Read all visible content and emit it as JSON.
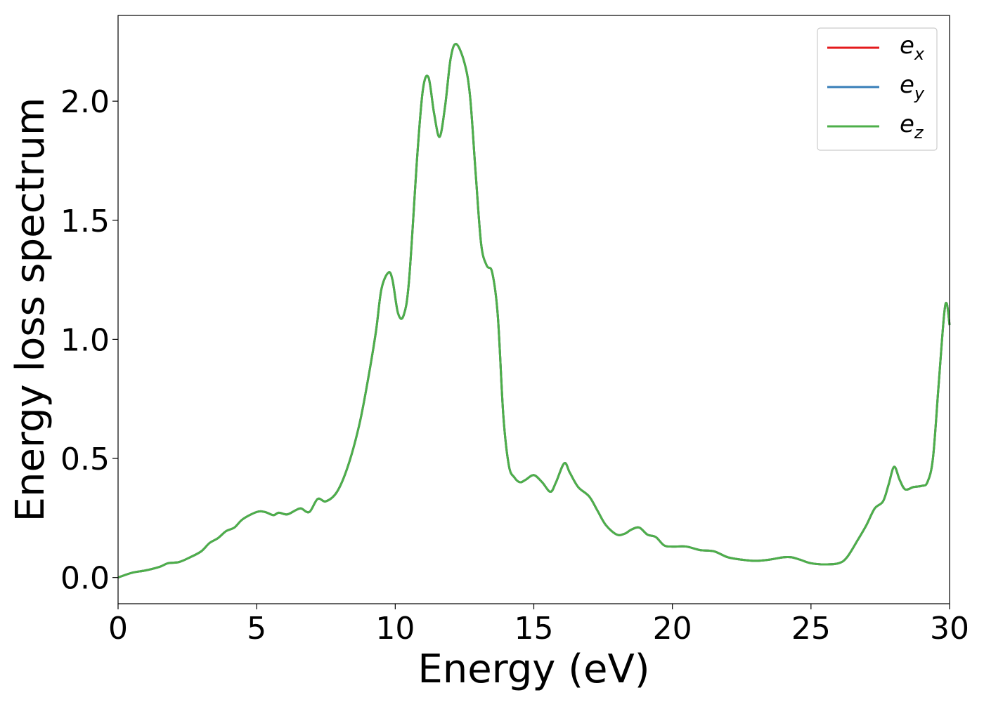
{
  "chart_data": {
    "type": "line",
    "xlabel": "Energy (eV)",
    "ylabel": "Energy loss spectrum",
    "xlim": [
      0,
      30
    ],
    "ylim": [
      -0.11,
      2.36
    ],
    "xticks": [
      0,
      5,
      10,
      15,
      20,
      25,
      30
    ],
    "xtick_labels": [
      "0",
      "5",
      "10",
      "15",
      "20",
      "25",
      "30"
    ],
    "yticks": [
      0.0,
      0.5,
      1.0,
      1.5,
      2.0
    ],
    "ytick_labels": [
      "0.0",
      "0.5",
      "1.0",
      "1.5",
      "2.0"
    ],
    "grid": false,
    "legend": {
      "position": "top-right"
    },
    "x": [
      0,
      0.5,
      1.0,
      1.5,
      1.8,
      2.2,
      2.6,
      3.0,
      3.3,
      3.6,
      3.9,
      4.2,
      4.5,
      5.0,
      5.3,
      5.6,
      5.8,
      6.1,
      6.4,
      6.6,
      6.9,
      7.2,
      7.5,
      7.9,
      8.3,
      8.7,
      9.0,
      9.3,
      9.5,
      9.75,
      9.9,
      10.1,
      10.3,
      10.5,
      10.8,
      11.0,
      11.2,
      11.4,
      11.6,
      11.8,
      12.0,
      12.2,
      12.5,
      12.7,
      12.9,
      13.1,
      13.3,
      13.5,
      13.7,
      13.9,
      14.1,
      14.3,
      14.5,
      14.7,
      15.0,
      15.3,
      15.6,
      15.8,
      16.1,
      16.3,
      16.6,
      17.0,
      17.3,
      17.6,
      18.0,
      18.3,
      18.5,
      18.8,
      19.1,
      19.4,
      19.7,
      20.0,
      20.5,
      21.0,
      21.5,
      22.0,
      22.5,
      23.0,
      23.5,
      24.0,
      24.3,
      24.6,
      25.0,
      25.5,
      26.0,
      26.3,
      26.7,
      27.0,
      27.3,
      27.6,
      27.8,
      28.0,
      28.2,
      28.4,
      28.7,
      29.0,
      29.2,
      29.4,
      29.6,
      29.8,
      29.9,
      30.0
    ],
    "series": [
      {
        "name": "e_x",
        "label_main": "e",
        "label_sub": "x",
        "color": "#e41a1c",
        "values": [
          0.0,
          0.02,
          0.03,
          0.045,
          0.06,
          0.065,
          0.085,
          0.11,
          0.145,
          0.165,
          0.195,
          0.21,
          0.245,
          0.275,
          0.275,
          0.262,
          0.272,
          0.265,
          0.282,
          0.29,
          0.275,
          0.33,
          0.32,
          0.36,
          0.47,
          0.64,
          0.82,
          1.03,
          1.21,
          1.28,
          1.25,
          1.11,
          1.1,
          1.25,
          1.78,
          2.05,
          2.1,
          1.95,
          1.85,
          1.98,
          2.18,
          2.24,
          2.16,
          2.02,
          1.7,
          1.4,
          1.31,
          1.28,
          1.1,
          0.68,
          0.47,
          0.42,
          0.4,
          0.41,
          0.43,
          0.4,
          0.36,
          0.4,
          0.48,
          0.44,
          0.38,
          0.34,
          0.28,
          0.22,
          0.18,
          0.185,
          0.2,
          0.21,
          0.18,
          0.17,
          0.135,
          0.13,
          0.13,
          0.115,
          0.11,
          0.085,
          0.075,
          0.07,
          0.075,
          0.085,
          0.085,
          0.075,
          0.06,
          0.055,
          0.06,
          0.085,
          0.16,
          0.22,
          0.29,
          0.32,
          0.39,
          0.465,
          0.41,
          0.37,
          0.38,
          0.385,
          0.4,
          0.5,
          0.8,
          1.1,
          1.15,
          1.06
        ]
      },
      {
        "name": "e_y",
        "label_main": "e",
        "label_sub": "y",
        "color": "#377eb8",
        "values": [
          0.0,
          0.02,
          0.03,
          0.045,
          0.06,
          0.065,
          0.085,
          0.11,
          0.145,
          0.165,
          0.195,
          0.21,
          0.245,
          0.275,
          0.275,
          0.262,
          0.272,
          0.265,
          0.282,
          0.29,
          0.275,
          0.33,
          0.32,
          0.36,
          0.47,
          0.64,
          0.82,
          1.03,
          1.21,
          1.28,
          1.25,
          1.11,
          1.1,
          1.25,
          1.78,
          2.05,
          2.1,
          1.95,
          1.85,
          1.98,
          2.18,
          2.24,
          2.16,
          2.02,
          1.7,
          1.4,
          1.31,
          1.28,
          1.1,
          0.68,
          0.47,
          0.42,
          0.4,
          0.41,
          0.43,
          0.4,
          0.36,
          0.4,
          0.48,
          0.44,
          0.38,
          0.34,
          0.28,
          0.22,
          0.18,
          0.185,
          0.2,
          0.21,
          0.18,
          0.17,
          0.135,
          0.13,
          0.13,
          0.115,
          0.11,
          0.085,
          0.075,
          0.07,
          0.075,
          0.085,
          0.085,
          0.075,
          0.06,
          0.055,
          0.06,
          0.085,
          0.16,
          0.22,
          0.29,
          0.32,
          0.39,
          0.465,
          0.41,
          0.37,
          0.38,
          0.385,
          0.4,
          0.5,
          0.8,
          1.1,
          1.15,
          1.06
        ]
      },
      {
        "name": "e_z",
        "label_main": "e",
        "label_sub": "z",
        "color": "#4daf4a",
        "values": [
          0.0,
          0.02,
          0.03,
          0.045,
          0.06,
          0.065,
          0.085,
          0.11,
          0.145,
          0.165,
          0.195,
          0.21,
          0.245,
          0.275,
          0.275,
          0.262,
          0.272,
          0.265,
          0.282,
          0.29,
          0.275,
          0.33,
          0.32,
          0.36,
          0.47,
          0.64,
          0.82,
          1.03,
          1.21,
          1.28,
          1.25,
          1.11,
          1.1,
          1.25,
          1.78,
          2.05,
          2.1,
          1.95,
          1.85,
          1.98,
          2.18,
          2.24,
          2.16,
          2.02,
          1.7,
          1.4,
          1.31,
          1.28,
          1.1,
          0.68,
          0.47,
          0.42,
          0.4,
          0.41,
          0.43,
          0.4,
          0.36,
          0.4,
          0.48,
          0.44,
          0.38,
          0.34,
          0.28,
          0.22,
          0.18,
          0.185,
          0.2,
          0.21,
          0.18,
          0.17,
          0.135,
          0.13,
          0.13,
          0.115,
          0.11,
          0.085,
          0.075,
          0.07,
          0.075,
          0.085,
          0.085,
          0.075,
          0.06,
          0.055,
          0.06,
          0.085,
          0.16,
          0.22,
          0.29,
          0.32,
          0.39,
          0.465,
          0.41,
          0.37,
          0.38,
          0.385,
          0.4,
          0.5,
          0.8,
          1.1,
          1.15,
          1.06
        ]
      }
    ]
  }
}
